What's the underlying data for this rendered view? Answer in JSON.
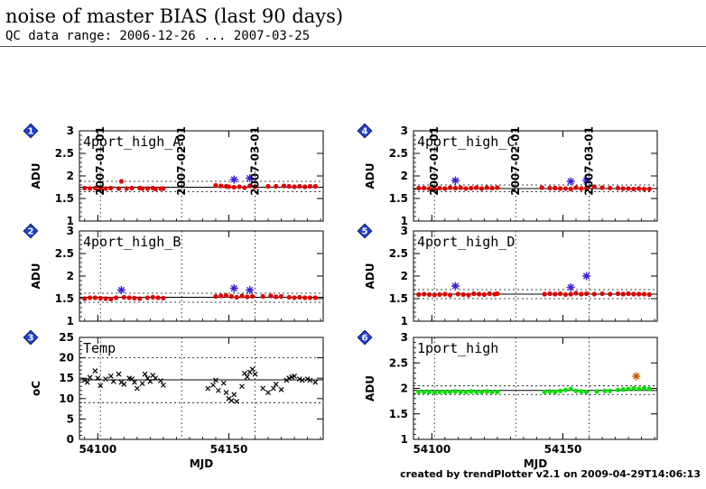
{
  "header": {
    "title": "noise of master BIAS (last 90 days)",
    "subtitle": "QC data range: 2006-12-26 ... 2007-03-25"
  },
  "footer": {
    "credit": "created by trendPlotter v2.1 on 2009-04-29T14:06:13"
  },
  "colors": {
    "normal": "#e00000",
    "outlier": "#3a1fd6",
    "temp": "#000000",
    "green": "#00e000",
    "orange_outlier": "#c85a00",
    "badge": "#1f3fd8"
  },
  "chart_data": {
    "type": "scatter",
    "x_axis": {
      "label": "MJD",
      "xlim": [
        54093,
        54186
      ],
      "ticks": [
        54100,
        54150
      ],
      "tick_labels": [
        "54100",
        "54150"
      ]
    },
    "date_markers": [
      {
        "label": "2007-01-01",
        "mjd": 54101
      },
      {
        "label": "2007-02-01",
        "mjd": 54132
      },
      {
        "label": "2007-03-01",
        "mjd": 54160
      }
    ],
    "panels": [
      {
        "id": "1",
        "badge": "1",
        "label": "4port_high_A",
        "ylabel": "ADU",
        "ylim": [
          1,
          3
        ],
        "yticks": [
          1,
          1.5,
          2,
          2.5,
          3
        ],
        "ytick_labels": [
          "1",
          "1.5",
          "2",
          "2.5",
          "3"
        ],
        "mean": 1.75,
        "band": [
          1.65,
          1.88
        ],
        "marker": "dot",
        "color": "#e00000",
        "points": [
          [
            54095,
            1.73
          ],
          [
            54097,
            1.72
          ],
          [
            54099,
            1.73
          ],
          [
            54101,
            1.71
          ],
          [
            54103,
            1.72
          ],
          [
            54105,
            1.73
          ],
          [
            54108,
            1.72
          ],
          [
            54109,
            1.88
          ],
          [
            54111,
            1.72
          ],
          [
            54113,
            1.73
          ],
          [
            54116,
            1.73
          ],
          [
            54117,
            1.72
          ],
          [
            54119,
            1.72
          ],
          [
            54121,
            1.73
          ],
          [
            54122,
            1.71
          ],
          [
            54124,
            1.72
          ],
          [
            54125,
            1.72
          ],
          [
            54145,
            1.79
          ],
          [
            54147,
            1.78
          ],
          [
            54149,
            1.77
          ],
          [
            54150,
            1.76
          ],
          [
            54152,
            1.75
          ],
          [
            54154,
            1.76
          ],
          [
            54156,
            1.74
          ],
          [
            54158,
            1.78
          ],
          [
            54160,
            1.76
          ],
          [
            54165,
            1.77
          ],
          [
            54168,
            1.77
          ],
          [
            54171,
            1.78
          ],
          [
            54173,
            1.77
          ],
          [
            54175,
            1.76
          ],
          [
            54177,
            1.77
          ],
          [
            54179,
            1.76
          ],
          [
            54181,
            1.77
          ],
          [
            54183,
            1.77
          ]
        ],
        "outliers": [
          [
            54152,
            1.92
          ],
          [
            54158,
            1.95
          ]
        ],
        "outlier_color": "#3a1fd6"
      },
      {
        "id": "2",
        "badge": "2",
        "label": "4port_high_B",
        "ylabel": "ADU",
        "ylim": [
          1,
          3
        ],
        "yticks": [
          1,
          1.5,
          2,
          2.5,
          3
        ],
        "ytick_labels": [
          "1",
          "1.5",
          "2",
          "2.5",
          "3"
        ],
        "mean": 1.53,
        "band": [
          1.42,
          1.62
        ],
        "marker": "dot",
        "color": "#e00000",
        "points": [
          [
            54095,
            1.5
          ],
          [
            54097,
            1.52
          ],
          [
            54099,
            1.52
          ],
          [
            54101,
            1.51
          ],
          [
            54103,
            1.5
          ],
          [
            54105,
            1.49
          ],
          [
            54107,
            1.52
          ],
          [
            54110,
            1.53
          ],
          [
            54112,
            1.52
          ],
          [
            54114,
            1.51
          ],
          [
            54116,
            1.5
          ],
          [
            54119,
            1.52
          ],
          [
            54121,
            1.53
          ],
          [
            54123,
            1.52
          ],
          [
            54125,
            1.51
          ],
          [
            54145,
            1.55
          ],
          [
            54147,
            1.56
          ],
          [
            54149,
            1.57
          ],
          [
            54151,
            1.55
          ],
          [
            54153,
            1.53
          ],
          [
            54155,
            1.56
          ],
          [
            54157,
            1.54
          ],
          [
            54159,
            1.55
          ],
          [
            54163,
            1.55
          ],
          [
            54166,
            1.56
          ],
          [
            54168,
            1.54
          ],
          [
            54170,
            1.55
          ],
          [
            54173,
            1.53
          ],
          [
            54175,
            1.52
          ],
          [
            54177,
            1.53
          ],
          [
            54179,
            1.52
          ],
          [
            54181,
            1.52
          ],
          [
            54183,
            1.52
          ]
        ],
        "outliers": [
          [
            54109,
            1.69
          ],
          [
            54152,
            1.73
          ],
          [
            54158,
            1.69
          ]
        ],
        "outlier_color": "#3a1fd6"
      },
      {
        "id": "3",
        "badge": "3",
        "label": "Temp",
        "ylabel": "oC",
        "ylim": [
          0,
          25
        ],
        "yticks": [
          0,
          5,
          10,
          15,
          20,
          25
        ],
        "ytick_labels": [
          "0",
          "5",
          "10",
          "15",
          "20",
          "25"
        ],
        "mean": 14.6,
        "band": [
          9,
          20
        ],
        "marker": "cross",
        "color": "#000000",
        "points": [
          [
            54095,
            14.5
          ],
          [
            54096,
            14
          ],
          [
            54097,
            15.2
          ],
          [
            54099,
            16.8
          ],
          [
            54100,
            15
          ],
          [
            54101,
            13.2
          ],
          [
            54103,
            14.8
          ],
          [
            54105,
            15.5
          ],
          [
            54106,
            14.2
          ],
          [
            54108,
            16
          ],
          [
            54109,
            14
          ],
          [
            54110,
            13.5
          ],
          [
            54112,
            15
          ],
          [
            54113,
            14.8
          ],
          [
            54114,
            14
          ],
          [
            54115,
            12.5
          ],
          [
            54117,
            13.7
          ],
          [
            54118,
            16
          ],
          [
            54119,
            15
          ],
          [
            54120,
            14.2
          ],
          [
            54121,
            15.7
          ],
          [
            54122,
            15
          ],
          [
            54124,
            14.4
          ],
          [
            54125,
            13.3
          ],
          [
            54142,
            12.5
          ],
          [
            54144,
            13.3
          ],
          [
            54145,
            14.5
          ],
          [
            54146,
            12
          ],
          [
            54148,
            13.8
          ],
          [
            54149,
            11.5
          ],
          [
            54150,
            10
          ],
          [
            54151,
            9.5
          ],
          [
            54152,
            11
          ],
          [
            54153,
            9.3
          ],
          [
            54155,
            13
          ],
          [
            54156,
            16.2
          ],
          [
            54157,
            15.3
          ],
          [
            54158,
            16.5
          ],
          [
            54159,
            17.2
          ],
          [
            54160,
            16
          ],
          [
            54163,
            12.5
          ],
          [
            54165,
            11.5
          ],
          [
            54167,
            12.5
          ],
          [
            54168,
            13.5
          ],
          [
            54170,
            12.2
          ],
          [
            54172,
            14.5
          ],
          [
            54173,
            15
          ],
          [
            54174,
            15.3
          ],
          [
            54175,
            15.5
          ],
          [
            54177,
            14.8
          ],
          [
            54178,
            14.5
          ],
          [
            54180,
            14.8
          ],
          [
            54181,
            14.5
          ],
          [
            54183,
            14
          ]
        ],
        "outliers": [],
        "outlier_color": "#000000"
      },
      {
        "id": "4",
        "badge": "4",
        "label": "4port_high_C",
        "ylabel": "ADU",
        "ylim": [
          1,
          3
        ],
        "yticks": [
          1,
          1.5,
          2,
          2.5,
          3
        ],
        "ytick_labels": [
          "1",
          "1.5",
          "2",
          "2.5",
          "3"
        ],
        "mean": 1.72,
        "band": [
          1.65,
          1.8
        ],
        "marker": "dot",
        "color": "#e00000",
        "points": [
          [
            54095,
            1.73
          ],
          [
            54097,
            1.73
          ],
          [
            54099,
            1.72
          ],
          [
            54101,
            1.71
          ],
          [
            54103,
            1.73
          ],
          [
            54105,
            1.72
          ],
          [
            54107,
            1.74
          ],
          [
            54109,
            1.73
          ],
          [
            54111,
            1.74
          ],
          [
            54113,
            1.72
          ],
          [
            54115,
            1.73
          ],
          [
            54117,
            1.74
          ],
          [
            54119,
            1.72
          ],
          [
            54121,
            1.74
          ],
          [
            54123,
            1.73
          ],
          [
            54125,
            1.74
          ],
          [
            54142,
            1.74
          ],
          [
            54145,
            1.73
          ],
          [
            54147,
            1.73
          ],
          [
            54149,
            1.72
          ],
          [
            54151,
            1.72
          ],
          [
            54153,
            1.71
          ],
          [
            54155,
            1.74
          ],
          [
            54157,
            1.72
          ],
          [
            54159,
            1.73
          ],
          [
            54162,
            1.76
          ],
          [
            54165,
            1.74
          ],
          [
            54168,
            1.73
          ],
          [
            54171,
            1.73
          ],
          [
            54173,
            1.72
          ],
          [
            54175,
            1.72
          ],
          [
            54177,
            1.71
          ],
          [
            54179,
            1.72
          ],
          [
            54181,
            1.71
          ],
          [
            54183,
            1.71
          ]
        ],
        "outliers": [
          [
            54109,
            1.9
          ],
          [
            54153,
            1.88
          ],
          [
            54159,
            1.9
          ]
        ],
        "outlier_color": "#3a1fd6"
      },
      {
        "id": "5",
        "badge": "5",
        "label": "4port_high_D",
        "ylabel": "ADU",
        "ylim": [
          1,
          3
        ],
        "yticks": [
          1,
          1.5,
          2,
          2.5,
          3
        ],
        "ytick_labels": [
          "1",
          "1.5",
          "2",
          "2.5",
          "3"
        ],
        "mean": 1.6,
        "band": [
          1.5,
          1.7
        ],
        "marker": "dot",
        "color": "#e00000",
        "points": [
          [
            54095,
            1.59
          ],
          [
            54097,
            1.6
          ],
          [
            54099,
            1.59
          ],
          [
            54101,
            1.58
          ],
          [
            54103,
            1.59
          ],
          [
            54105,
            1.6
          ],
          [
            54107,
            1.58
          ],
          [
            54110,
            1.6
          ],
          [
            54112,
            1.59
          ],
          [
            54114,
            1.58
          ],
          [
            54116,
            1.61
          ],
          [
            54118,
            1.6
          ],
          [
            54120,
            1.59
          ],
          [
            54122,
            1.61
          ],
          [
            54124,
            1.6
          ],
          [
            54125,
            1.61
          ],
          [
            54143,
            1.6
          ],
          [
            54145,
            1.61
          ],
          [
            54147,
            1.6
          ],
          [
            54149,
            1.61
          ],
          [
            54151,
            1.59
          ],
          [
            54153,
            1.6
          ],
          [
            54155,
            1.62
          ],
          [
            54157,
            1.6
          ],
          [
            54159,
            1.61
          ],
          [
            54162,
            1.6
          ],
          [
            54165,
            1.61
          ],
          [
            54168,
            1.6
          ],
          [
            54171,
            1.61
          ],
          [
            54173,
            1.6
          ],
          [
            54175,
            1.61
          ],
          [
            54177,
            1.6
          ],
          [
            54179,
            1.6
          ],
          [
            54181,
            1.6
          ],
          [
            54183,
            1.59
          ]
        ],
        "outliers": [
          [
            54109,
            1.78
          ],
          [
            54153,
            1.75
          ],
          [
            54159,
            2.0
          ]
        ],
        "outlier_color": "#3a1fd6"
      },
      {
        "id": "6",
        "badge": "6",
        "label": "1port_high",
        "ylabel": "ADU",
        "ylim": [
          1,
          3
        ],
        "yticks": [
          1,
          1.5,
          2,
          2.5,
          3
        ],
        "ytick_labels": [
          "1",
          "1.5",
          "2",
          "2.5",
          "3"
        ],
        "mean": 1.96,
        "band": [
          1.88,
          2.05
        ],
        "marker": "dot",
        "color": "#00e000",
        "points": [
          [
            54095,
            1.93
          ],
          [
            54097,
            1.93
          ],
          [
            54099,
            1.93
          ],
          [
            54101,
            1.92
          ],
          [
            54103,
            1.93
          ],
          [
            54105,
            1.93
          ],
          [
            54107,
            1.93
          ],
          [
            54109,
            1.94
          ],
          [
            54111,
            1.93
          ],
          [
            54113,
            1.93
          ],
          [
            54115,
            1.94
          ],
          [
            54117,
            1.93
          ],
          [
            54119,
            1.93
          ],
          [
            54121,
            1.94
          ],
          [
            54123,
            1.93
          ],
          [
            54125,
            1.93
          ],
          [
            54143,
            1.93
          ],
          [
            54145,
            1.94
          ],
          [
            54147,
            1.93
          ],
          [
            54149,
            1.95
          ],
          [
            54151,
            1.97
          ],
          [
            54153,
            1.99
          ],
          [
            54155,
            1.95
          ],
          [
            54157,
            1.94
          ],
          [
            54159,
            1.93
          ],
          [
            54163,
            1.94
          ],
          [
            54166,
            1.95
          ],
          [
            54168,
            1.95
          ],
          [
            54171,
            1.97
          ],
          [
            54173,
            1.98
          ],
          [
            54175,
            1.99
          ],
          [
            54177,
            2.0
          ],
          [
            54179,
            1.99
          ],
          [
            54181,
            2.0
          ],
          [
            54183,
            1.99
          ]
        ],
        "outliers": [
          [
            54178,
            2.24
          ]
        ],
        "outlier_color": "#c85a00"
      }
    ]
  }
}
